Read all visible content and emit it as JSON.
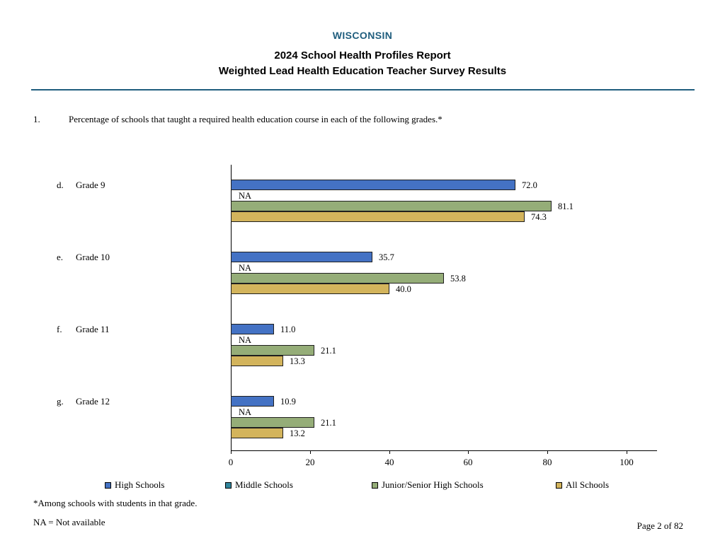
{
  "header": {
    "state": "WISCONSIN",
    "title_line1": "2024 School Health Profiles Report",
    "title_line2": "Weighted Lead Health Education Teacher Survey Results",
    "accent_color": "#205e7e"
  },
  "question": {
    "number": "1.",
    "text": "Percentage of schools that taught a required health education course in each of the following grades.*"
  },
  "chart_data": {
    "type": "bar",
    "orientation": "horizontal",
    "title": "Percentage of schools that taught a required health education course in each of the following grades",
    "categories": [
      {
        "prefix": "d.",
        "label": "Grade 9"
      },
      {
        "prefix": "e.",
        "label": "Grade 10"
      },
      {
        "prefix": "f.",
        "label": "Grade 11"
      },
      {
        "prefix": "g.",
        "label": "Grade 12"
      }
    ],
    "series": [
      {
        "name": "High Schools",
        "color": "#4472c4",
        "values": [
          72.0,
          35.7,
          11.0,
          10.9
        ]
      },
      {
        "name": "Middle Schools",
        "color": "#31859c",
        "values": [
          null,
          null,
          null,
          null
        ]
      },
      {
        "name": "Junior/Senior High Schools",
        "color": "#95ad78",
        "values": [
          81.1,
          53.8,
          21.1,
          21.1
        ]
      },
      {
        "name": "All Schools",
        "color": "#d3b45c",
        "values": [
          74.3,
          40.0,
          13.3,
          13.2
        ]
      }
    ],
    "na_label": "NA",
    "xlim": [
      0,
      100
    ],
    "xticks": [
      0,
      20,
      40,
      60,
      80,
      100
    ],
    "grid": false,
    "legend_position": "bottom",
    "value_label_decimals": 1
  },
  "footnotes": {
    "among": "*Among schools with students in that grade.",
    "na": "NA = Not available"
  },
  "footer": {
    "page_label": "Page 2 of 82"
  }
}
